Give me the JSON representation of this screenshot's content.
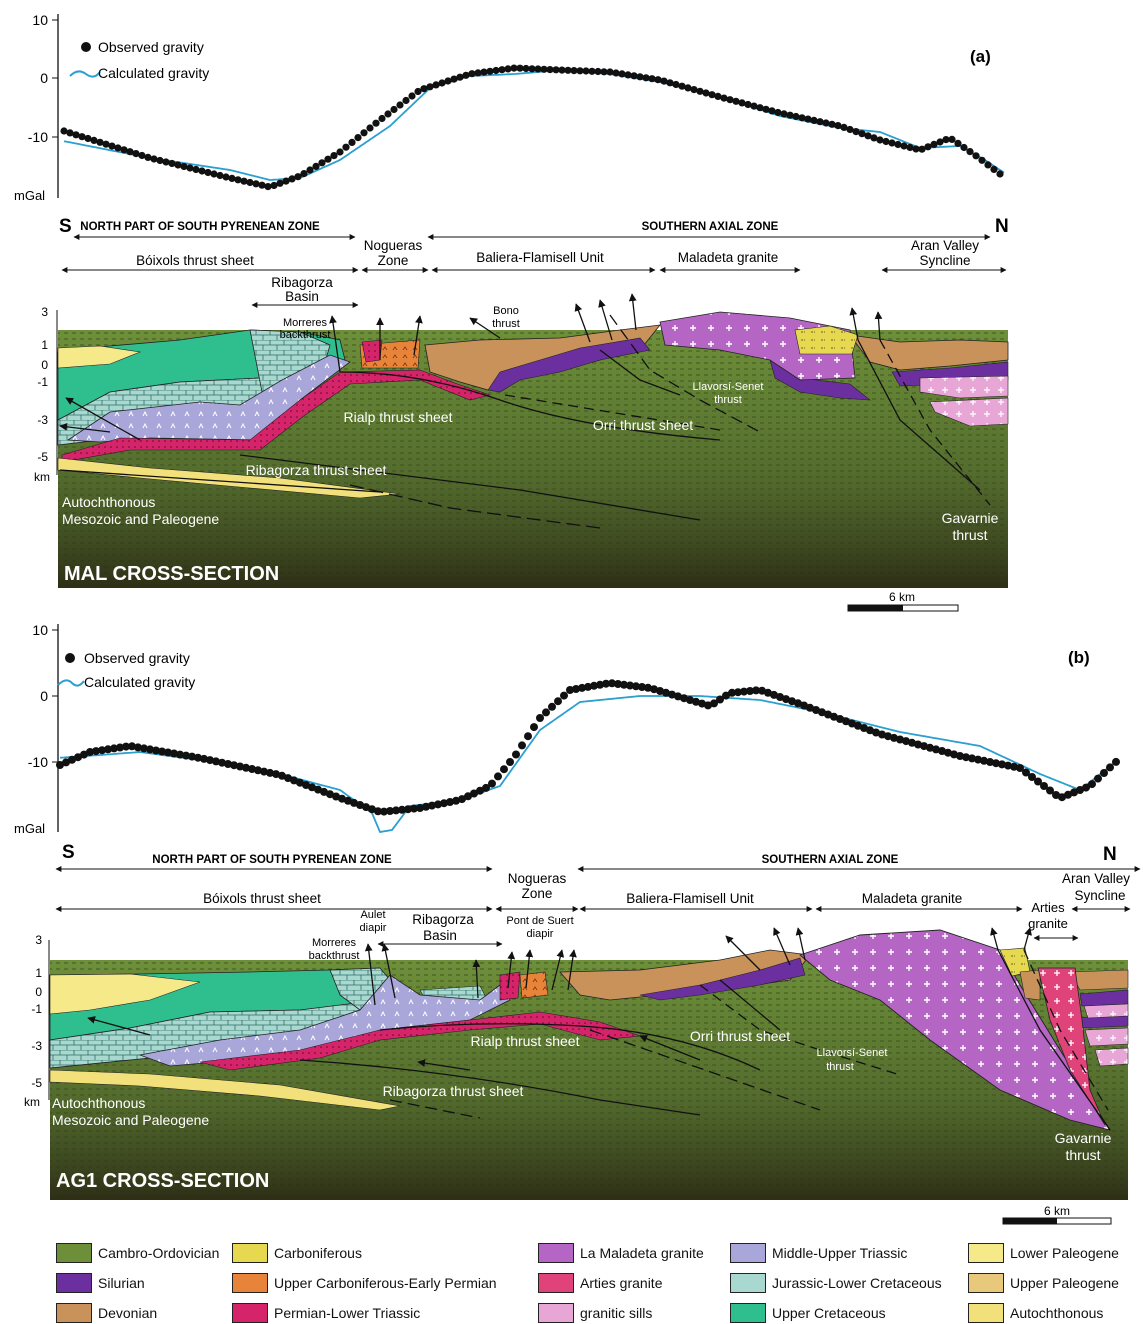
{
  "panel_a": {
    "tag": "(a)",
    "legend_observed": "Observed gravity",
    "legend_calculated": "Calculated gravity",
    "y_ticks": [
      "10",
      "0",
      "-10"
    ],
    "y_unit": "mGal",
    "left_letter": "S",
    "right_letter": "N",
    "zone_left": "NORTH PART OF SOUTH PYRENEAN ZONE",
    "zone_right": "SOUTHERN AXIAL ZONE",
    "unit_boixols": "Bóixols thrust sheet",
    "unit_nogueras_1": "Nogueras",
    "unit_nogueras_2": "Zone",
    "unit_baliera": "Baliera-Flamisell Unit",
    "unit_maladeta": "Maladeta granite",
    "unit_aran_1": "Aran Valley",
    "unit_aran_2": "Syncline",
    "ribagorza_1": "Ribagorza",
    "ribagorza_2": "Basin",
    "depth_ticks": [
      "3",
      "1",
      "0",
      "-1",
      "-3",
      "-5"
    ],
    "depth_unit": "km",
    "lbl_morreres_1": "Morreres",
    "lbl_morreres_2": "backthrust",
    "lbl_bono_1": "Bono",
    "lbl_bono_2": "thrust",
    "lbl_llavorsi_1": "Llavorsí-Senet",
    "lbl_llavorsi_2": "thrust",
    "lbl_rialp": "Rialp thrust sheet",
    "lbl_orri": "Orri thrust sheet",
    "lbl_ribagorza_sheet": "Ribagorza thrust sheet",
    "lbl_autoch_1": "Autochthonous",
    "lbl_autoch_2": "Mesozoic and Paleogene",
    "lbl_gavarnie_1": "Gavarnie",
    "lbl_gavarnie_2": "thrust",
    "section_title": "MAL CROSS-SECTION",
    "scale": "6 km"
  },
  "panel_b": {
    "tag": "(b)",
    "legend_observed": "Observed gravity",
    "legend_calculated": "Calculated gravity",
    "y_ticks": [
      "10",
      "0",
      "-10"
    ],
    "y_unit": "mGal",
    "left_letter": "S",
    "right_letter": "N",
    "zone_left": "NORTH PART OF SOUTH PYRENEAN ZONE",
    "zone_right": "SOUTHERN AXIAL ZONE",
    "unit_boixols": "Bóixols thrust sheet",
    "unit_nogueras_1": "Nogueras",
    "unit_nogueras_2": "Zone",
    "unit_baliera": "Baliera-Flamisell Unit",
    "unit_maladeta": "Maladeta granite",
    "unit_aran_1": "Aran Valley",
    "unit_aran_2": "Syncline",
    "unit_arties_1": "Arties",
    "unit_arties_2": "granite",
    "ribagorza_1": "Ribagorza",
    "ribagorza_2": "Basin",
    "depth_ticks": [
      "3",
      "1",
      "0",
      "-1",
      "-3",
      "-5"
    ],
    "depth_unit": "km",
    "lbl_aulet_1": "Aulet",
    "lbl_aulet_2": "diapir",
    "lbl_pont_1": "Pont de Suert",
    "lbl_pont_2": "diapir",
    "lbl_morreres_1": "Morreres",
    "lbl_morreres_2": "backthrust",
    "lbl_llavorsi_1": "Llavorsí-Senet",
    "lbl_llavorsi_2": "thrust",
    "lbl_rialp": "Rialp thrust sheet",
    "lbl_orri": "Orri thrust sheet",
    "lbl_ribagorza_sheet": "Ribagorza thrust sheet",
    "lbl_autoch_1": "Autochthonous",
    "lbl_autoch_2": "Mesozoic and Paleogene",
    "lbl_gavarnie_1": "Gavarnie",
    "lbl_gavarnie_2": "thrust",
    "section_title": "AG1 CROSS-SECTION",
    "scale": "6 km"
  },
  "colors": {
    "cambro": "#6e8f3a",
    "silurian": "#6b2fa0",
    "devonian": "#c8925a",
    "carboniferous": "#e6d84f",
    "u_carb_permian": "#e8833a",
    "permian_triassic": "#d6246a",
    "maladeta": "#b566c4",
    "arties": "#e0437a",
    "sills": "#e7a6d6",
    "triassic": "#a9a6da",
    "jurassic": "#a8d8cf",
    "u_cretaceous": "#2fbf8f",
    "l_paleogene": "#f5e98a",
    "u_paleogene": "#e8c87a",
    "autochthonous": "#f2e07a",
    "observed": "#111111",
    "calculated": "#2a9fd0"
  },
  "legend": [
    {
      "label": "Cambro-Ordovician",
      "color": "#6e8f3a"
    },
    {
      "label": "Silurian",
      "color": "#6b2fa0"
    },
    {
      "label": "Devonian",
      "color": "#c8925a"
    },
    {
      "label": "Carboniferous",
      "color": "#e6d84f"
    },
    {
      "label": "Upper Carboniferous-Early Permian",
      "color": "#e8833a"
    },
    {
      "label": "Permian-Lower Triassic",
      "color": "#d6246a"
    },
    {
      "label": "La Maladeta granite",
      "color": "#b566c4"
    },
    {
      "label": "Arties granite",
      "color": "#e0437a"
    },
    {
      "label": "granitic sills",
      "color": "#e7a6d6"
    },
    {
      "label": "Middle-Upper Triassic",
      "color": "#a9a6da"
    },
    {
      "label": "Jurassic-Lower Cretaceous",
      "color": "#a8d8cf"
    },
    {
      "label": "Upper Cretaceous",
      "color": "#2fbf8f"
    },
    {
      "label": "Lower Paleogene",
      "color": "#f5e98a"
    },
    {
      "label": "Upper Paleogene",
      "color": "#e8c87a"
    },
    {
      "label": "Autochthonous",
      "color": "#f2e07a"
    }
  ]
}
